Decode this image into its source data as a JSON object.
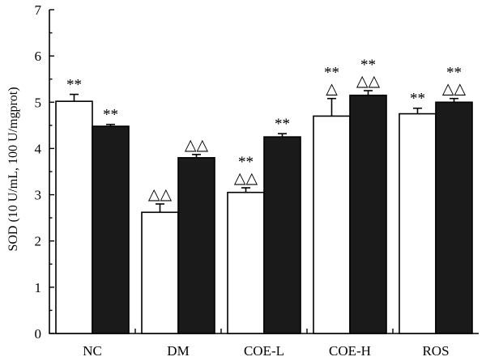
{
  "chart_data": {
    "type": "bar",
    "title": "",
    "xlabel": "",
    "ylabel": "SOD (10 U/mL, 100 U/mgprot)",
    "ylim": [
      0,
      7
    ],
    "yticks": [
      "0",
      "1",
      "2",
      "3",
      "4",
      "5",
      "6",
      "7"
    ],
    "categories": [
      "NC",
      "DM",
      "COE-L",
      "COE-H",
      "ROS"
    ],
    "grid": false,
    "legend": "none",
    "series": [
      {
        "color": "#ffffff",
        "values": [
          5.02,
          2.62,
          3.05,
          4.7,
          4.75
        ],
        "errors": [
          0.15,
          0.18,
          0.1,
          0.38,
          0.12
        ],
        "annotations": [
          [
            "**"
          ],
          [
            "△△"
          ],
          [
            "△△",
            "**"
          ],
          [
            "△",
            "**"
          ],
          [
            "**"
          ]
        ]
      },
      {
        "color": "#1a1a1a",
        "values": [
          4.48,
          3.8,
          4.25,
          5.15,
          5.0
        ],
        "errors": [
          0.04,
          0.07,
          0.07,
          0.1,
          0.08
        ],
        "annotations": [
          [
            "**"
          ],
          [
            "△△"
          ],
          [
            "**"
          ],
          [
            "△△",
            "**"
          ],
          [
            "△△",
            "**"
          ]
        ]
      }
    ]
  }
}
